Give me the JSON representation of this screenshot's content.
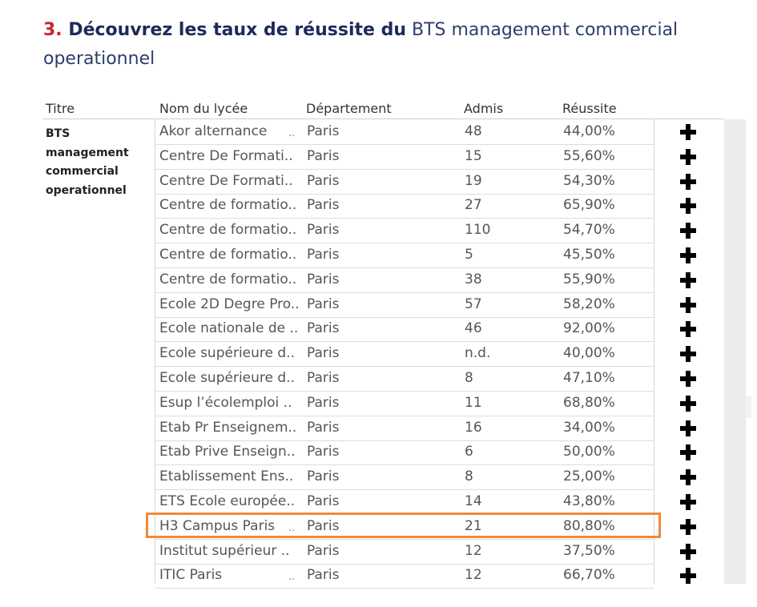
{
  "heading": {
    "number": "3.",
    "bold_text": " Découvrez les taux de réussite du",
    "light_text": " BTS management commercial operationnel"
  },
  "columns": {
    "titre": "Titre",
    "nom": "Nom du lycée",
    "departement": "Département",
    "admis": "Admis",
    "reussite": "Réussite"
  },
  "titre_value": "BTS management commercial operationnel",
  "truncation_marker": "..",
  "plus_icon": "plus-icon",
  "highlight_color": "#f0893a",
  "rows": [
    {
      "nom": "Akor alternance",
      "dots": true,
      "dept": "Paris",
      "admis": "48",
      "reussite": "44,00%"
    },
    {
      "nom": "Centre De Formati..",
      "dots": false,
      "dept": "Paris",
      "admis": "15",
      "reussite": "55,60%"
    },
    {
      "nom": "Centre De Formati..",
      "dots": false,
      "dept": "Paris",
      "admis": "19",
      "reussite": "54,30%"
    },
    {
      "nom": "Centre de formatio..",
      "dots": false,
      "dept": "Paris",
      "admis": "27",
      "reussite": "65,90%"
    },
    {
      "nom": "Centre de formatio..",
      "dots": false,
      "dept": "Paris",
      "admis": "110",
      "reussite": "54,70%"
    },
    {
      "nom": "Centre de formatio..",
      "dots": false,
      "dept": "Paris",
      "admis": "5",
      "reussite": "45,50%"
    },
    {
      "nom": "Centre de formatio..",
      "dots": false,
      "dept": "Paris",
      "admis": "38",
      "reussite": "55,90%"
    },
    {
      "nom": "Ecole 2D Degre Pro..",
      "dots": false,
      "dept": "Paris",
      "admis": "57",
      "reussite": "58,20%"
    },
    {
      "nom": "Ecole nationale de ..",
      "dots": false,
      "dept": "Paris",
      "admis": "46",
      "reussite": "92,00%"
    },
    {
      "nom": "Ecole supérieure d..",
      "dots": false,
      "dept": "Paris",
      "admis": "n.d.",
      "reussite": "40,00%"
    },
    {
      "nom": "Ecole supérieure d..",
      "dots": false,
      "dept": "Paris",
      "admis": "8",
      "reussite": "47,10%"
    },
    {
      "nom": "Esup l’écolemploi ..",
      "dots": false,
      "dept": "Paris",
      "admis": "11",
      "reussite": "68,80%"
    },
    {
      "nom": "Etab Pr Enseignem..",
      "dots": false,
      "dept": "Paris",
      "admis": "16",
      "reussite": "34,00%"
    },
    {
      "nom": "Etab Prive Enseign..",
      "dots": false,
      "dept": "Paris",
      "admis": "6",
      "reussite": "50,00%"
    },
    {
      "nom": "Etablissement Ens..",
      "dots": false,
      "dept": "Paris",
      "admis": "8",
      "reussite": "25,00%"
    },
    {
      "nom": "ETS Ecole europée..",
      "dots": false,
      "dept": "Paris",
      "admis": "14",
      "reussite": "43,80%"
    },
    {
      "nom": "H3 Campus Paris",
      "dots": true,
      "dept": "Paris",
      "admis": "21",
      "reussite": "80,80%",
      "highlighted": true
    },
    {
      "nom": "Institut supérieur ..",
      "dots": false,
      "dept": "Paris",
      "admis": "12",
      "reussite": "37,50%"
    },
    {
      "nom": "ITIC Paris",
      "dots": true,
      "dept": "Paris",
      "admis": "12",
      "reussite": "66,70%"
    }
  ]
}
